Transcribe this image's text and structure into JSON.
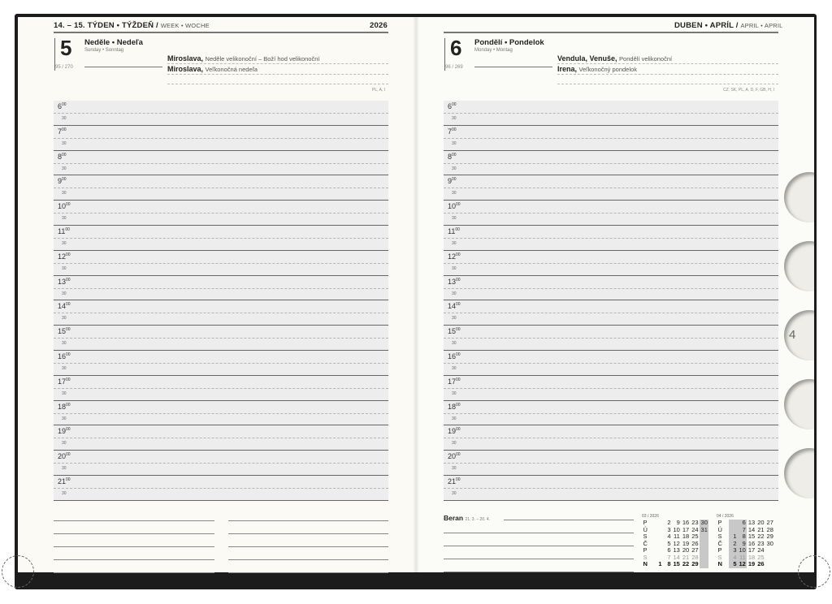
{
  "left": {
    "week_title": "14. – 15. TÝDEN • TÝŽDEŇ /",
    "week_title_light": "WEEK • WOCHE",
    "year": "2026",
    "day_number": "5",
    "day_name": "Neděle • Nedeľa",
    "day_sub": "Sunday • Sonntag",
    "day_count": "95 / 270",
    "names": [
      {
        "name": "Miroslava,",
        "note": "Neděle velikonoční – Boží hod velikonoční"
      },
      {
        "name": "Miroslava,",
        "note": "Veľkonočná nedeľa"
      }
    ],
    "countries": "PL, A, I"
  },
  "right": {
    "month_title": "DUBEN • APRÍL /",
    "month_title_light": "APRIL • APRIL",
    "day_number": "6",
    "day_name": "Pondělí • Pondelok",
    "day_sub": "Monday • Montag",
    "day_count": "96 / 269",
    "names": [
      {
        "name": "Vendula, Venuše,",
        "note": "Pondělí velikonoční"
      },
      {
        "name": "Irena,",
        "note": "Veľkonočný pondelok"
      }
    ],
    "countries": "CZ, SK, PL, A, D, F, GB, H, I",
    "zodiac": "Beran",
    "zodiac_dates": "21. 3. – 20. 4.",
    "calendars": [
      {
        "title": "03 / 2026",
        "rows": [
          [
            "P",
            "",
            "2",
            "9",
            "16",
            "23",
            "30"
          ],
          [
            "Ú",
            "",
            "3",
            "10",
            "17",
            "24",
            "31"
          ],
          [
            "S",
            "",
            "4",
            "11",
            "18",
            "25",
            ""
          ],
          [
            "Č",
            "",
            "5",
            "12",
            "19",
            "26",
            ""
          ],
          [
            "P",
            "",
            "6",
            "13",
            "20",
            "27",
            ""
          ],
          [
            "S",
            "",
            "7",
            "14",
            "21",
            "28",
            ""
          ],
          [
            "N",
            "1",
            "8",
            "15",
            "22",
            "29",
            ""
          ]
        ],
        "highlight_cols": [
          6
        ]
      },
      {
        "title": "04 / 2026",
        "rows": [
          [
            "P",
            "",
            "6",
            "13",
            "20",
            "27"
          ],
          [
            "Ú",
            "",
            "7",
            "14",
            "21",
            "28"
          ],
          [
            "S",
            "1",
            "8",
            "15",
            "22",
            "29"
          ],
          [
            "Č",
            "2",
            "9",
            "16",
            "23",
            "30"
          ],
          [
            "P",
            "3",
            "10",
            "17",
            "24",
            ""
          ],
          [
            "S",
            "4",
            "11",
            "18",
            "25",
            ""
          ],
          [
            "N",
            "5",
            "12",
            "19",
            "26",
            ""
          ]
        ],
        "highlight_cols": [
          1,
          2
        ]
      }
    ]
  },
  "hours": [
    "6",
    "7",
    "8",
    "9",
    "10",
    "11",
    "12",
    "13",
    "14",
    "15",
    "16",
    "17",
    "18",
    "19",
    "20",
    "21"
  ],
  "minute_label": "30",
  "hour_suffix": "00",
  "tabs": [
    "",
    "",
    "4",
    "",
    ""
  ]
}
